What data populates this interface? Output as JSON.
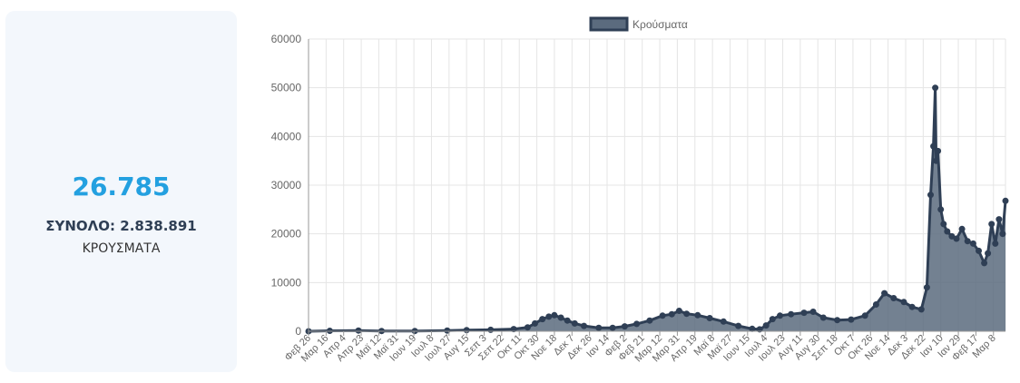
{
  "summary": {
    "today_value": "26.785",
    "total_text": "ΣΥΝΟΛΟ: 2.838.891",
    "label": "ΚΡΟΥΣΜΑΤΑ"
  },
  "colors": {
    "accent": "#23a0e0",
    "series_fill": "#5b6b7e",
    "series_line": "#2f3f55",
    "grid": "#e5e5e5",
    "card_bg": "#f3f7fc"
  },
  "chart_data": {
    "type": "area",
    "title": "",
    "xlabel": "",
    "ylabel": "",
    "ylim": [
      0,
      60000
    ],
    "yticks": [
      0,
      10000,
      20000,
      30000,
      40000,
      50000,
      60000
    ],
    "grid": true,
    "legend": "top-center",
    "x_start": "2020-02-26",
    "x_end": "2022-03-21",
    "x_tick_labels": [
      "Φεβ 26",
      "Μαρ 16",
      "Απρ 4",
      "Απρ 23",
      "Μαϊ 12",
      "Μαϊ 31",
      "Ιουν 19",
      "Ιουλ 8",
      "Ιουλ 27",
      "Αυγ 15",
      "Σεπ 3",
      "Σεπ 22",
      "Οκτ 11",
      "Οκτ 30",
      "Νοε 18",
      "Δεκ 7",
      "Δεκ 26",
      "Ιαν 14",
      "Φεβ 2",
      "Φεβ 21",
      "Μαρ 12",
      "Μαρ 31",
      "Απρ 19",
      "Μαϊ 8",
      "Μαϊ 27",
      "Ιουν 15",
      "Ιουλ 4",
      "Ιουλ 23",
      "Αυγ 11",
      "Αυγ 30",
      "Σεπ 18",
      "Οκτ 7",
      "Οκτ 26",
      "Νοε 14",
      "Δεκ 3",
      "Δεκ 22",
      "Ιαν 10",
      "Ιαν 29",
      "Φεβ 17",
      "Μαρ 8"
    ],
    "series": [
      {
        "name": "Κρούσματα",
        "points": [
          [
            "2020-02-26",
            0
          ],
          [
            "2020-03-20",
            100
          ],
          [
            "2020-04-20",
            150
          ],
          [
            "2020-05-15",
            50
          ],
          [
            "2020-06-20",
            50
          ],
          [
            "2020-07-25",
            150
          ],
          [
            "2020-08-15",
            250
          ],
          [
            "2020-09-10",
            300
          ],
          [
            "2020-10-05",
            450
          ],
          [
            "2020-10-20",
            800
          ],
          [
            "2020-10-28",
            1600
          ],
          [
            "2020-11-05",
            2500
          ],
          [
            "2020-11-12",
            3000
          ],
          [
            "2020-11-18",
            3300
          ],
          [
            "2020-11-25",
            2800
          ],
          [
            "2020-12-02",
            2200
          ],
          [
            "2020-12-10",
            1600
          ],
          [
            "2020-12-20",
            1100
          ],
          [
            "2021-01-05",
            700
          ],
          [
            "2021-01-20",
            700
          ],
          [
            "2021-02-02",
            1000
          ],
          [
            "2021-02-15",
            1500
          ],
          [
            "2021-03-01",
            2200
          ],
          [
            "2021-03-15",
            3200
          ],
          [
            "2021-03-25",
            3500
          ],
          [
            "2021-04-02",
            4200
          ],
          [
            "2021-04-10",
            3600
          ],
          [
            "2021-04-22",
            3300
          ],
          [
            "2021-05-05",
            2700
          ],
          [
            "2021-05-20",
            2000
          ],
          [
            "2021-06-05",
            1100
          ],
          [
            "2021-06-20",
            500
          ],
          [
            "2021-06-28",
            400
          ],
          [
            "2021-07-05",
            1200
          ],
          [
            "2021-07-12",
            2500
          ],
          [
            "2021-07-20",
            3200
          ],
          [
            "2021-08-01",
            3500
          ],
          [
            "2021-08-15",
            3800
          ],
          [
            "2021-08-25",
            4000
          ],
          [
            "2021-09-05",
            2800
          ],
          [
            "2021-09-20",
            2300
          ],
          [
            "2021-10-05",
            2400
          ],
          [
            "2021-10-20",
            3200
          ],
          [
            "2021-11-01",
            5500
          ],
          [
            "2021-11-10",
            7800
          ],
          [
            "2021-11-20",
            6800
          ],
          [
            "2021-12-01",
            6000
          ],
          [
            "2021-12-10",
            5000
          ],
          [
            "2021-12-20",
            4500
          ],
          [
            "2021-12-26",
            9000
          ],
          [
            "2021-12-30",
            28000
          ],
          [
            "2022-01-02",
            38000
          ],
          [
            "2022-01-04",
            50000
          ],
          [
            "2022-01-05",
            35000
          ],
          [
            "2022-01-07",
            37000
          ],
          [
            "2022-01-10",
            25000
          ],
          [
            "2022-01-13",
            22000
          ],
          [
            "2022-01-17",
            20500
          ],
          [
            "2022-01-22",
            19500
          ],
          [
            "2022-01-27",
            19000
          ],
          [
            "2022-02-02",
            21000
          ],
          [
            "2022-02-08",
            18500
          ],
          [
            "2022-02-14",
            18000
          ],
          [
            "2022-02-20",
            16500
          ],
          [
            "2022-02-26",
            14000
          ],
          [
            "2022-03-02",
            16000
          ],
          [
            "2022-03-06",
            22000
          ],
          [
            "2022-03-10",
            18000
          ],
          [
            "2022-03-14",
            23000
          ],
          [
            "2022-03-18",
            20000
          ],
          [
            "2022-03-21",
            26785
          ]
        ]
      }
    ]
  }
}
